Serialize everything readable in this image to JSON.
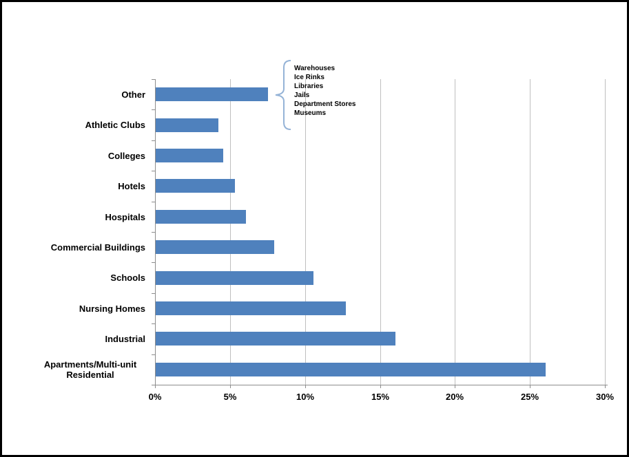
{
  "frame": {
    "background_color": "#ffffff",
    "border_color": "#000000"
  },
  "chart_data": {
    "type": "bar",
    "orientation": "horizontal",
    "title": "",
    "xlabel": "",
    "ylabel": "",
    "categories": [
      "Other",
      "Athletic Clubs",
      "Colleges",
      "Hotels",
      "Hospitals",
      "Commercial Buildings",
      "Schools",
      "Nursing Homes",
      "Industrial",
      "Apartments/Multi-unit Residential"
    ],
    "values": [
      7.5,
      4.2,
      4.5,
      5.3,
      6.0,
      7.9,
      10.5,
      12.7,
      16.0,
      26.0
    ],
    "unit": "%",
    "x_axis": {
      "min": 0,
      "max": 30,
      "step": 5,
      "tick_labels": [
        "0%",
        "5%",
        "10%",
        "15%",
        "20%",
        "25%",
        "30%"
      ]
    },
    "grid": "vertical-on",
    "legend": "none",
    "colors": {
      "bar_fill": "#4F81BD",
      "gridline": "#BFBFBF",
      "axis_line": "#8C8C8C",
      "label_text": "#000000",
      "bracket": "#95B3D7"
    },
    "annotation": {
      "target_category": "Other",
      "bracket_shape": "left-curly-brace",
      "lines": [
        "Warehouses",
        "Ice Rinks",
        "Libraries",
        "Jails",
        "Department Stores",
        "Museums"
      ]
    }
  }
}
